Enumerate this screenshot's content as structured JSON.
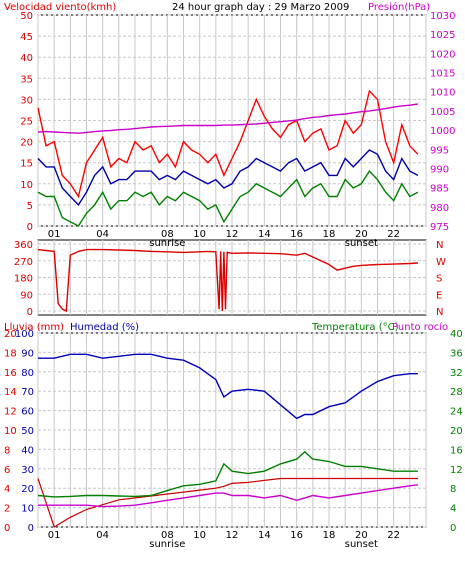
{
  "header": {
    "title": "24 hour graph day : 29 Marzo 2009",
    "left_label": "Velocidad viento(kmh)",
    "right_label": "Presión(hPa)"
  },
  "colors": {
    "wind_gust": "#ff0000",
    "wind_avg": "#0000aa",
    "wind_min": "#008000",
    "pressure": "#cc00cc",
    "direction": "#dd0000",
    "humidity": "#0000bb",
    "temperature": "#008000",
    "dewpoint": "#cc00cc",
    "rain": "#cc0000",
    "grid": "#c8c8c8",
    "label_red": "#dd0000",
    "label_magenta": "#cc00cc",
    "label_blue": "#0000aa",
    "label_green": "#008000"
  },
  "x_axis": {
    "ticks": [
      "01",
      "04",
      "08",
      "10",
      "12",
      "14",
      "16",
      "18",
      "20",
      "22"
    ],
    "sunrise_label": "sunrise",
    "sunset_label": "sunset",
    "sunrise_tick": "08",
    "sunset_tick": "20"
  },
  "chart_data": [
    {
      "type": "line",
      "title": "24 hour graph day : 29 Marzo 2009",
      "ylabel_left": "Velocidad viento(kmh)",
      "ylabel_right": "Presión(hPa)",
      "ylim_left": [
        0,
        50
      ],
      "yticks_left": [
        "0",
        "5",
        "10",
        "15",
        "20",
        "25",
        "30",
        "35",
        "40",
        "45",
        "50"
      ],
      "ylim_right": [
        975,
        1030
      ],
      "yticks_right": [
        "975",
        "980",
        "985",
        "990",
        "995",
        "1000",
        "1005",
        "1010",
        "1015",
        "1020",
        "1025",
        "1030"
      ],
      "x": [
        0,
        0.5,
        1,
        1.5,
        2,
        2.5,
        3,
        3.5,
        4,
        4.5,
        5,
        5.5,
        6,
        6.5,
        7,
        7.5,
        8,
        8.5,
        9,
        9.5,
        10,
        10.5,
        11,
        11.5,
        12,
        12.5,
        13,
        13.5,
        14,
        14.5,
        15,
        15.5,
        16,
        16.5,
        17,
        17.5,
        18,
        18.5,
        19,
        19.5,
        20,
        20.5,
        21,
        21.5,
        22,
        22.5,
        23,
        23.5
      ],
      "series": [
        {
          "name": "gust",
          "axis": "left",
          "values": [
            28,
            19,
            20,
            12,
            10,
            7,
            15,
            18,
            21,
            14,
            16,
            15,
            20,
            18,
            19,
            15,
            17,
            14,
            20,
            18,
            17,
            15,
            17,
            12,
            16,
            20,
            25,
            30,
            26,
            23,
            21,
            24,
            25,
            20,
            22,
            23,
            18,
            19,
            25,
            22,
            24,
            32,
            30,
            20,
            15,
            24,
            19,
            17
          ]
        },
        {
          "name": "average",
          "axis": "left",
          "values": [
            16,
            14,
            14,
            9,
            7,
            5,
            8,
            12,
            14,
            10,
            11,
            11,
            13,
            13,
            13,
            11,
            12,
            11,
            13,
            12,
            11,
            10,
            11,
            9,
            10,
            13,
            14,
            16,
            15,
            14,
            13,
            15,
            16,
            13,
            14,
            15,
            12,
            12,
            16,
            14,
            16,
            18,
            17,
            13,
            11,
            16,
            13,
            12
          ]
        },
        {
          "name": "min",
          "axis": "left",
          "values": [
            8,
            7,
            7,
            2,
            1,
            0,
            3,
            5,
            8,
            4,
            6,
            6,
            8,
            7,
            8,
            5,
            7,
            6,
            8,
            7,
            6,
            4,
            5,
            1,
            4,
            7,
            8,
            10,
            9,
            8,
            7,
            9,
            11,
            7,
            9,
            10,
            7,
            7,
            11,
            9,
            10,
            13,
            11,
            8,
            6,
            10,
            7,
            8
          ]
        },
        {
          "name": "pressure",
          "axis": "right",
          "values": [
            999.5,
            999.6,
            999.5,
            999.4,
            999.3,
            999.2,
            999.4,
            999.6,
            999.8,
            999.9,
            1000.1,
            1000.2,
            1000.4,
            1000.6,
            1000.8,
            1000.9,
            1001.0,
            1001.1,
            1001.2,
            1001.2,
            1001.2,
            1001.2,
            1001.2,
            1001.3,
            1001.3,
            1001.4,
            1001.5,
            1001.6,
            1001.8,
            1002.0,
            1002.2,
            1002.4,
            1002.6,
            1003.0,
            1003.3,
            1003.5,
            1003.8,
            1004.0,
            1004.2,
            1004.5,
            1004.8,
            1005.0,
            1005.3,
            1005.6,
            1006.0,
            1006.3,
            1006.5,
            1006.8
          ]
        }
      ]
    },
    {
      "type": "line",
      "ylabels_left": [
        "360",
        "270",
        "180",
        "90",
        "0"
      ],
      "ylim_left": [
        0,
        360
      ],
      "ylabels_right": [
        "N",
        "W",
        "S",
        "E",
        "N"
      ],
      "x": [
        0,
        0.5,
        1,
        1.25,
        1.5,
        1.75,
        2,
        2.5,
        3,
        4,
        5,
        6,
        7,
        8,
        9,
        10,
        10.5,
        11,
        11.2,
        11.3,
        11.4,
        11.5,
        11.6,
        11.7,
        12,
        13,
        14,
        15,
        16,
        16.5,
        17,
        17.5,
        18,
        18.5,
        19,
        19.5,
        20,
        21,
        22,
        23,
        23.5
      ],
      "series": [
        {
          "name": "direction",
          "values": [
            330,
            325,
            320,
            40,
            10,
            0,
            300,
            320,
            330,
            330,
            328,
            325,
            320,
            318,
            315,
            318,
            320,
            318,
            10,
            320,
            0,
            318,
            10,
            315,
            310,
            312,
            310,
            308,
            300,
            310,
            290,
            270,
            250,
            220,
            230,
            240,
            245,
            250,
            252,
            255,
            258
          ]
        }
      ]
    },
    {
      "type": "line",
      "ylabel_left_rain": "Lluvia (mm)",
      "ylabel_left_humidity": "Humedad (%)",
      "ylabel_right_temp": "Temperatura (°C)",
      "ylabel_right_dew": "Punto rocío",
      "yticks_rain": [
        "0",
        "2",
        "4",
        "6",
        "8",
        "10",
        "12",
        "14",
        "16",
        "18",
        "20"
      ],
      "yticks_humidity": [
        "0",
        "10",
        "20",
        "30",
        "40",
        "50",
        "60",
        "70",
        "80",
        "90",
        "100"
      ],
      "yticks_temperature": [
        "0",
        "4",
        "8",
        "12",
        "16",
        "20",
        "24",
        "28",
        "32",
        "36",
        "40"
      ],
      "ylim_humidity": [
        0,
        100
      ],
      "ylim_temperature": [
        0,
        40
      ],
      "ylim_rain": [
        0,
        20
      ],
      "x": [
        0,
        1,
        2,
        3,
        4,
        5,
        6,
        7,
        8,
        9,
        10,
        11,
        11.5,
        12,
        13,
        14,
        15,
        16,
        16.5,
        17,
        18,
        19,
        20,
        21,
        22,
        23,
        23.5
      ],
      "series": [
        {
          "name": "humidity",
          "values": [
            87,
            87,
            89,
            89,
            87,
            88,
            89,
            89,
            87,
            86,
            82,
            76,
            67,
            70,
            71,
            70,
            63,
            56,
            58,
            58,
            62,
            64,
            70,
            75,
            78,
            79,
            79
          ]
        },
        {
          "name": "temperature",
          "values": [
            6.5,
            6.2,
            6.3,
            6.5,
            6.5,
            6.4,
            6.3,
            6.5,
            7.5,
            8.5,
            8.8,
            9.5,
            13,
            11.5,
            11,
            11.5,
            13,
            14,
            15.5,
            14,
            13.5,
            12.5,
            12.5,
            12,
            11.5,
            11.5,
            11.5
          ]
        },
        {
          "name": "dewpoint",
          "values": [
            4.5,
            4.5,
            4.5,
            4.5,
            4.2,
            4.3,
            4.5,
            5.0,
            5.5,
            6.0,
            6.5,
            7.0,
            7.0,
            6.5,
            6.5,
            6.0,
            6.5,
            5.5,
            6.0,
            6.5,
            6.0,
            6.5,
            7.0,
            7.5,
            8.0,
            8.5,
            8.7
          ]
        },
        {
          "name": "rain",
          "values": [
            5.0,
            0.0,
            1.0,
            1.8,
            2.3,
            2.8,
            3.0,
            3.2,
            3.4,
            3.6,
            3.8,
            4.0,
            4.2,
            4.5,
            4.6,
            4.8,
            5.0,
            5.0,
            5.0,
            5.0,
            5.0,
            5.0,
            5.0,
            5.0,
            5.0,
            5.0,
            5.0
          ]
        }
      ]
    }
  ]
}
